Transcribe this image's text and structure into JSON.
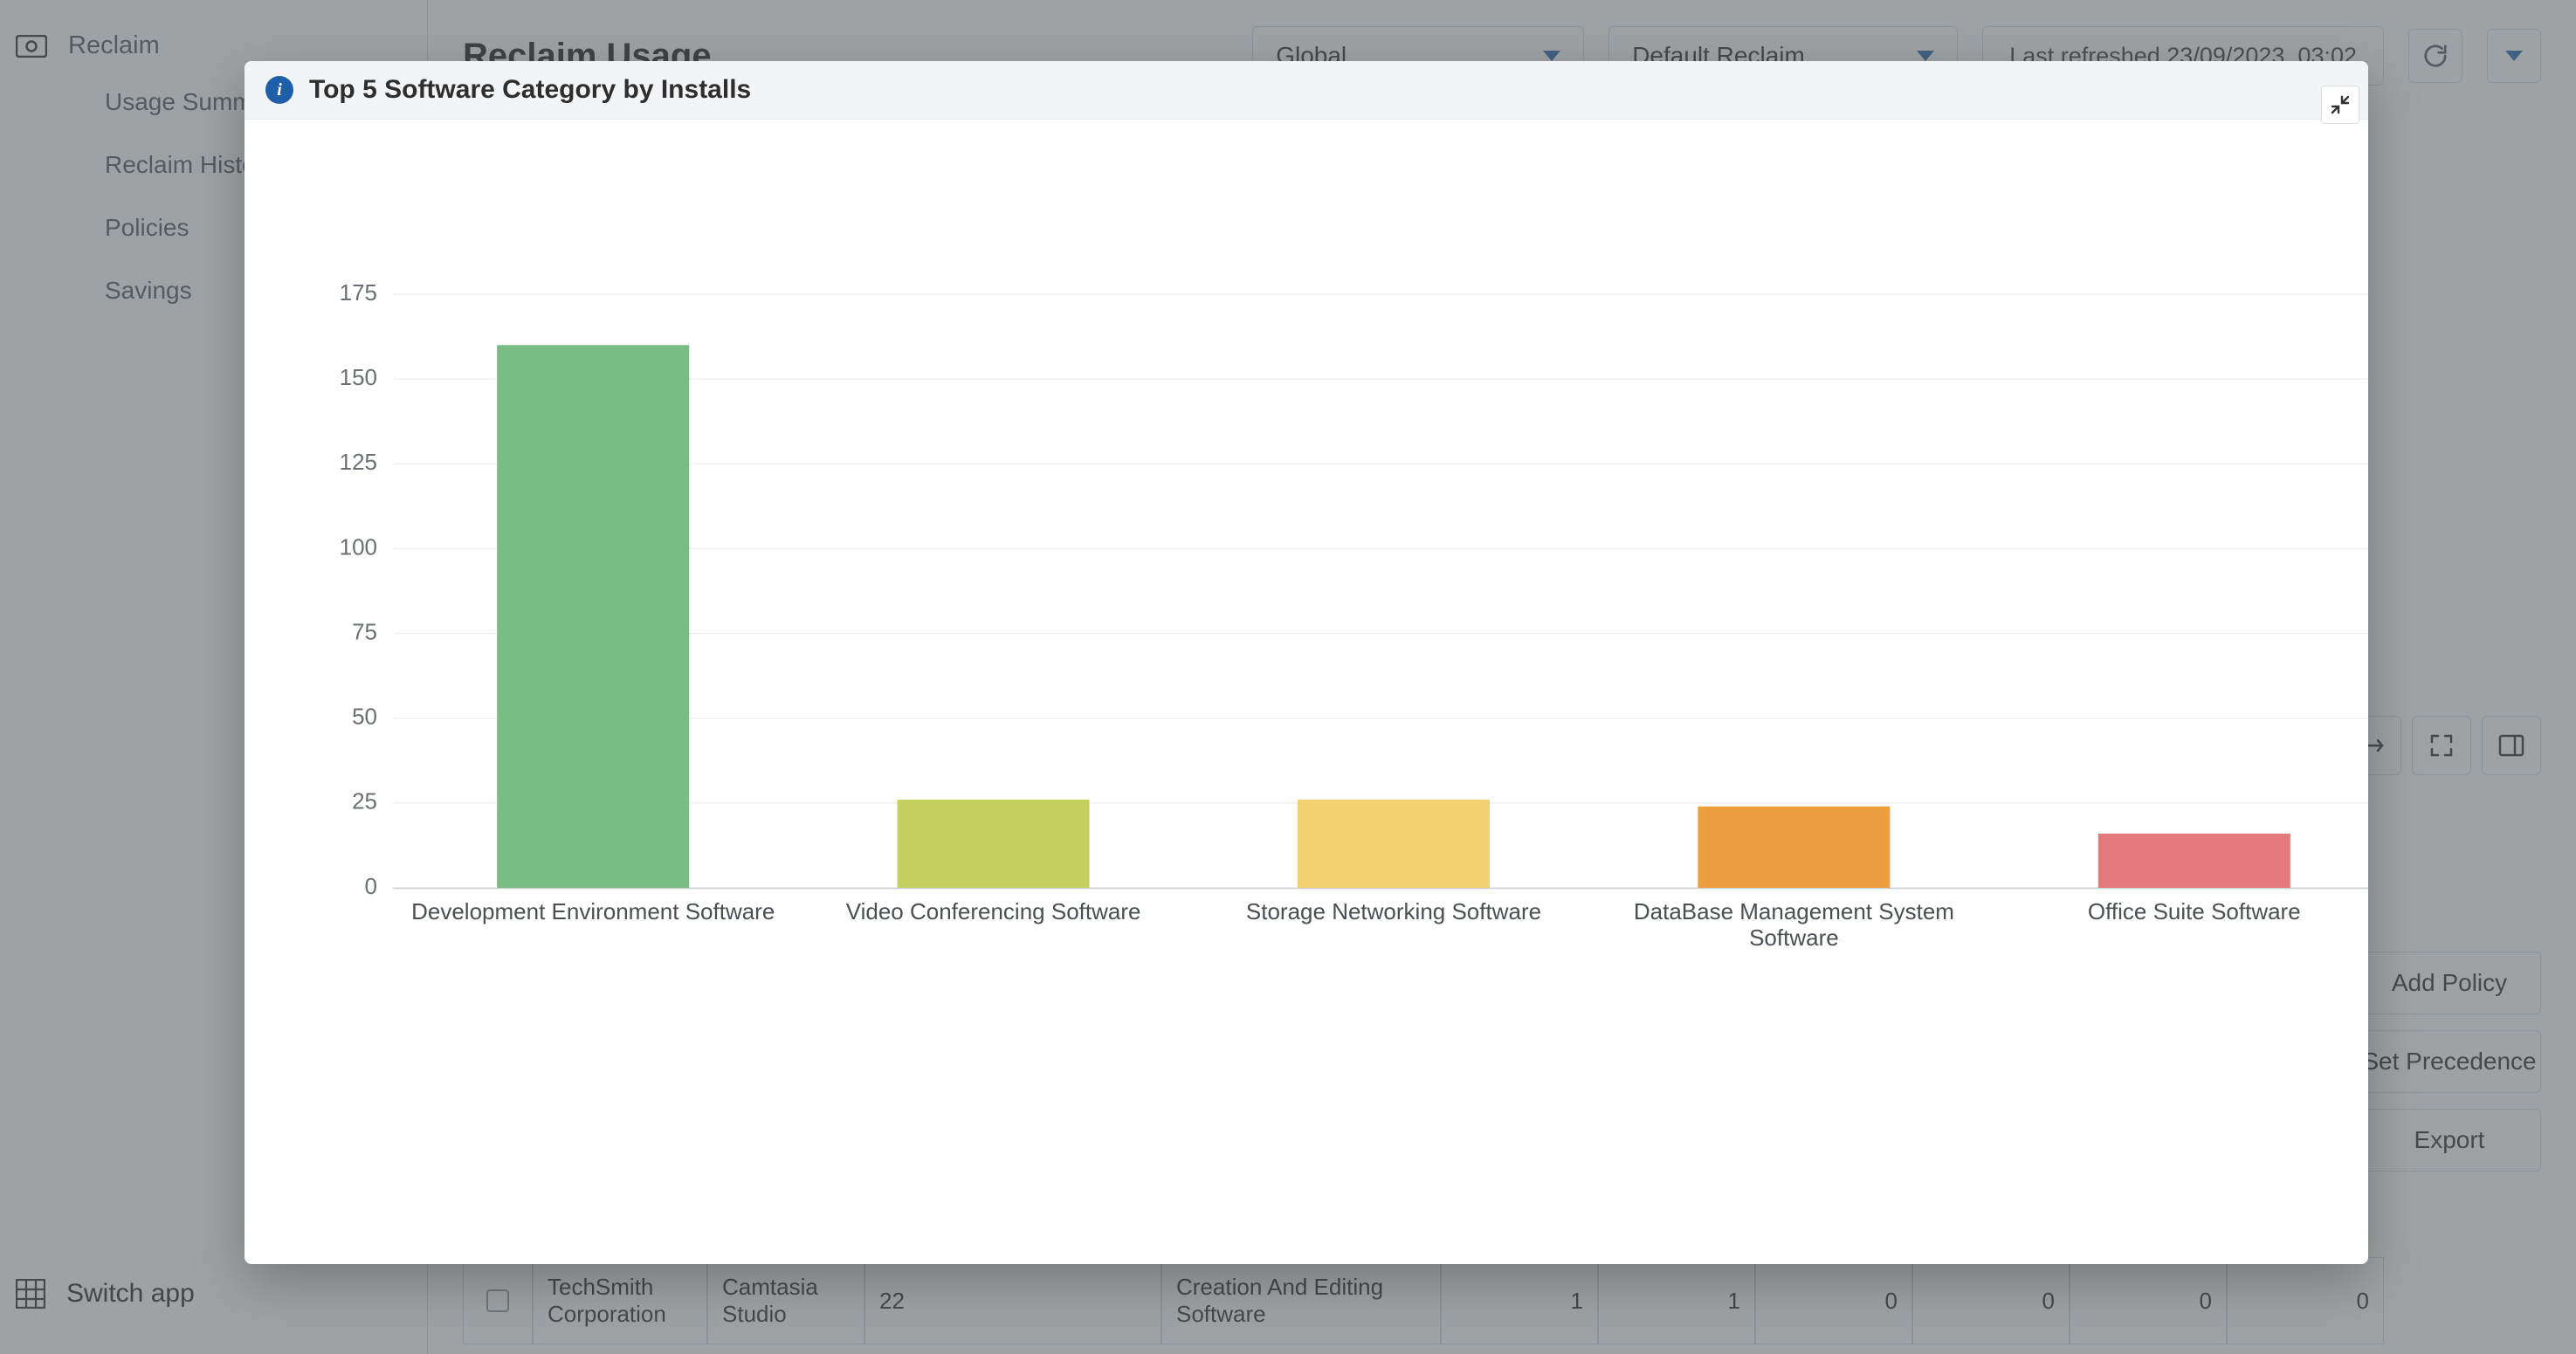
{
  "sidebar": {
    "top_label": "Reclaim",
    "items": [
      "Usage Summary",
      "Reclaim History",
      "Policies",
      "Savings"
    ],
    "switch_app": "Switch app"
  },
  "header": {
    "title": "Reclaim Usage",
    "scope_dropdown": "Global",
    "policy_dropdown": "Default Reclaim",
    "last_refreshed": "Last refreshed 23/09/2023, 03:02"
  },
  "right_buttons": {
    "add_policy": "Add Policy",
    "set_precedence": "Set Precedence",
    "export": "Export"
  },
  "table_row": {
    "vendor": "TechSmith Corporation",
    "product": "Camtasia Studio",
    "version": "22",
    "category": "Creation And Editing Software",
    "n1": "1",
    "n2": "1",
    "n3": "0",
    "n4": "0",
    "n5": "0",
    "n6": "0"
  },
  "modal": {
    "title": "Top 5 Software Category by Installs"
  },
  "chart": {
    "type": "bar",
    "categories": [
      "Development Environment Software",
      "Video Conferencing Software",
      "Storage Networking Software",
      "DataBase Management System\nSoftware",
      "Office Suite Software"
    ],
    "values": [
      160,
      26,
      26,
      24,
      16
    ],
    "bar_colors": [
      "#79bd83",
      "#c3cf5e",
      "#f3d173",
      "#ed9e3f",
      "#e57a7d"
    ],
    "background_color": "#ffffff",
    "grid_color": "#e7eaec",
    "axis_color": "#c8ccd0",
    "ytick_step": 25,
    "ylim": [
      0,
      175
    ],
    "bar_width_ratio": 0.48,
    "label_fontsize": 26,
    "label_color": "#4a4f55",
    "ytick_color": "#6a6f75"
  }
}
